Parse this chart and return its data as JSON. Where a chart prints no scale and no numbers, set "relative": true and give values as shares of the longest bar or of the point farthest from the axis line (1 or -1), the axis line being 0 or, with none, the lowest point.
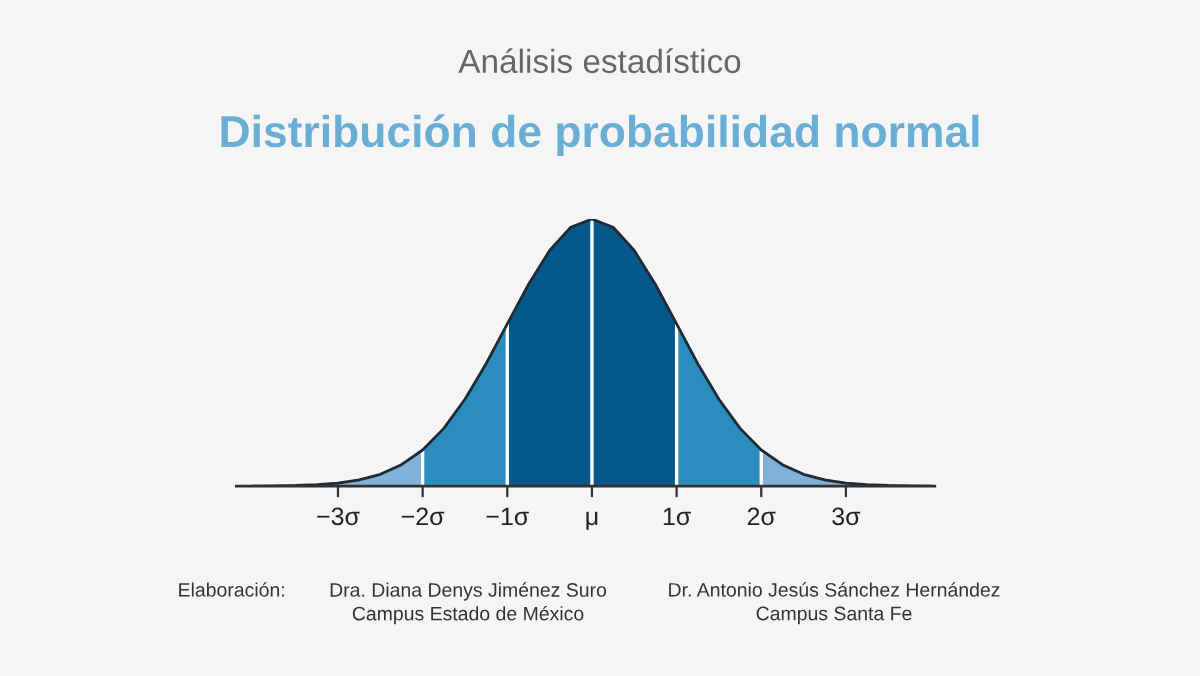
{
  "chart_data": {
    "type": "area",
    "relative": true,
    "subtitle": "Análisis estadístico",
    "title": "Distribución de probabilidad normal",
    "series": [
      {
        "color": "#7fb1d9",
        "x": [
          -4.0,
          -3.75,
          -3.5,
          -3.25,
          -3.0,
          -2.75,
          -2.5,
          -2.25,
          -2.0
        ],
        "values": [
          0.0,
          0.001,
          0.002,
          0.005,
          0.011,
          0.023,
          0.044,
          0.08,
          0.135
        ]
      },
      {
        "color": "#2b8cbe",
        "x": [
          -2.0,
          -1.75,
          -1.5,
          -1.25,
          -1.0
        ],
        "values": [
          0.135,
          0.216,
          0.325,
          0.458,
          0.607
        ]
      },
      {
        "color": "#04588b",
        "x": [
          -1.0,
          -0.75,
          -0.5,
          -0.25,
          0,
          0.25,
          0.5,
          0.75,
          1.0
        ],
        "values": [
          0.607,
          0.755,
          0.882,
          0.969,
          1,
          0.969,
          0.882,
          0.755,
          0.607
        ]
      },
      {
        "color": "#2b8cbe",
        "x": [
          1.0,
          1.25,
          1.5,
          1.75,
          2.0
        ],
        "values": [
          0.607,
          0.458,
          0.325,
          0.216,
          0.135
        ]
      },
      {
        "color": "#7fb1d9",
        "x": [
          2.0,
          2.25,
          2.5,
          2.75,
          3.0,
          3.25,
          3.5,
          3.75,
          4.0
        ],
        "values": [
          0.135,
          0.08,
          0.044,
          0.023,
          0.011,
          0.005,
          0.002,
          0.001,
          0.0
        ]
      },
      {
        "type": "line",
        "color": "#1f2a36",
        "x": [
          -4.0,
          -3.75,
          -3.5,
          -3.25,
          -3.0,
          -2.75,
          -2.5,
          -2.25,
          -2.0,
          -1.75,
          -1.5,
          -1.25,
          -1.0,
          -0.75,
          -0.5,
          -0.25,
          0,
          0.25,
          0.5,
          0.75,
          1.0,
          1.25,
          1.5,
          1.75,
          2.0,
          2.25,
          2.5,
          2.75,
          3.0,
          3.25,
          3.5,
          3.75,
          4.0
        ],
        "values": [
          0.0,
          0.001,
          0.002,
          0.005,
          0.011,
          0.023,
          0.044,
          0.08,
          0.135,
          0.216,
          0.325,
          0.458,
          0.607,
          0.755,
          0.882,
          0.969,
          1,
          0.969,
          0.882,
          0.755,
          0.607,
          0.458,
          0.325,
          0.216,
          0.135,
          0.08,
          0.044,
          0.023,
          0.011,
          0.005,
          0.002,
          0.001,
          0.0
        ]
      }
    ],
    "xlim": [
      -4.2,
      4.05
    ],
    "xticks": [
      {
        "value": -3,
        "label": "−3σ"
      },
      {
        "value": -2,
        "label": "−2σ"
      },
      {
        "value": -1,
        "label": "−1σ"
      },
      {
        "value": 0,
        "label": "μ"
      },
      {
        "value": 1,
        "label": "1σ"
      },
      {
        "value": 2,
        "label": "2σ"
      },
      {
        "value": 3,
        "label": "3σ"
      }
    ],
    "ref_lines": [
      {
        "axis": "x",
        "value": -2,
        "color": "#ffffff"
      },
      {
        "axis": "x",
        "value": -1,
        "color": "#ffffff"
      },
      {
        "axis": "x",
        "value": 0,
        "color": "#ffffff"
      },
      {
        "axis": "x",
        "value": 1,
        "color": "#ffffff"
      },
      {
        "axis": "x",
        "value": 2,
        "color": "#ffffff"
      }
    ],
    "grid": false,
    "legend": false,
    "annotations": [
      "Elaboración:",
      "Dra. Diana Denys Jiménez Suro",
      "Campus Estado de México",
      "Dr. Antonio Jesús Sánchez Hernández",
      "Campus Santa Fe"
    ]
  }
}
